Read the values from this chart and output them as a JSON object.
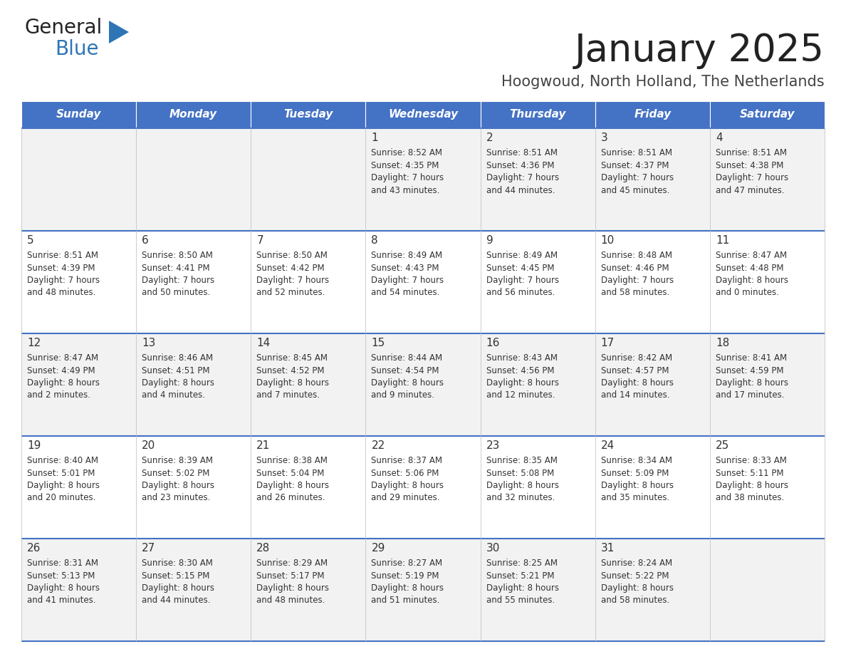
{
  "title": "January 2025",
  "subtitle": "Hoogwoud, North Holland, The Netherlands",
  "days_of_week": [
    "Sunday",
    "Monday",
    "Tuesday",
    "Wednesday",
    "Thursday",
    "Friday",
    "Saturday"
  ],
  "header_bg": "#4472C4",
  "header_text": "#FFFFFF",
  "row_bg_light": "#F2F2F2",
  "row_bg_white": "#FFFFFF",
  "cell_text": "#333333",
  "border_color": "#4472C4",
  "title_color": "#222222",
  "subtitle_color": "#444444",
  "logo_black": "#222222",
  "logo_blue": "#2E75B6",
  "calendar": [
    [
      null,
      null,
      null,
      {
        "day": 1,
        "sunrise": "8:52 AM",
        "sunset": "4:35 PM",
        "daylight": "7 hours and 43 minutes"
      },
      {
        "day": 2,
        "sunrise": "8:51 AM",
        "sunset": "4:36 PM",
        "daylight": "7 hours and 44 minutes"
      },
      {
        "day": 3,
        "sunrise": "8:51 AM",
        "sunset": "4:37 PM",
        "daylight": "7 hours and 45 minutes"
      },
      {
        "day": 4,
        "sunrise": "8:51 AM",
        "sunset": "4:38 PM",
        "daylight": "7 hours and 47 minutes"
      }
    ],
    [
      {
        "day": 5,
        "sunrise": "8:51 AM",
        "sunset": "4:39 PM",
        "daylight": "7 hours and 48 minutes"
      },
      {
        "day": 6,
        "sunrise": "8:50 AM",
        "sunset": "4:41 PM",
        "daylight": "7 hours and 50 minutes"
      },
      {
        "day": 7,
        "sunrise": "8:50 AM",
        "sunset": "4:42 PM",
        "daylight": "7 hours and 52 minutes"
      },
      {
        "day": 8,
        "sunrise": "8:49 AM",
        "sunset": "4:43 PM",
        "daylight": "7 hours and 54 minutes"
      },
      {
        "day": 9,
        "sunrise": "8:49 AM",
        "sunset": "4:45 PM",
        "daylight": "7 hours and 56 minutes"
      },
      {
        "day": 10,
        "sunrise": "8:48 AM",
        "sunset": "4:46 PM",
        "daylight": "7 hours and 58 minutes"
      },
      {
        "day": 11,
        "sunrise": "8:47 AM",
        "sunset": "4:48 PM",
        "daylight": "8 hours and 0 minutes"
      }
    ],
    [
      {
        "day": 12,
        "sunrise": "8:47 AM",
        "sunset": "4:49 PM",
        "daylight": "8 hours and 2 minutes"
      },
      {
        "day": 13,
        "sunrise": "8:46 AM",
        "sunset": "4:51 PM",
        "daylight": "8 hours and 4 minutes"
      },
      {
        "day": 14,
        "sunrise": "8:45 AM",
        "sunset": "4:52 PM",
        "daylight": "8 hours and 7 minutes"
      },
      {
        "day": 15,
        "sunrise": "8:44 AM",
        "sunset": "4:54 PM",
        "daylight": "8 hours and 9 minutes"
      },
      {
        "day": 16,
        "sunrise": "8:43 AM",
        "sunset": "4:56 PM",
        "daylight": "8 hours and 12 minutes"
      },
      {
        "day": 17,
        "sunrise": "8:42 AM",
        "sunset": "4:57 PM",
        "daylight": "8 hours and 14 minutes"
      },
      {
        "day": 18,
        "sunrise": "8:41 AM",
        "sunset": "4:59 PM",
        "daylight": "8 hours and 17 minutes"
      }
    ],
    [
      {
        "day": 19,
        "sunrise": "8:40 AM",
        "sunset": "5:01 PM",
        "daylight": "8 hours and 20 minutes"
      },
      {
        "day": 20,
        "sunrise": "8:39 AM",
        "sunset": "5:02 PM",
        "daylight": "8 hours and 23 minutes"
      },
      {
        "day": 21,
        "sunrise": "8:38 AM",
        "sunset": "5:04 PM",
        "daylight": "8 hours and 26 minutes"
      },
      {
        "day": 22,
        "sunrise": "8:37 AM",
        "sunset": "5:06 PM",
        "daylight": "8 hours and 29 minutes"
      },
      {
        "day": 23,
        "sunrise": "8:35 AM",
        "sunset": "5:08 PM",
        "daylight": "8 hours and 32 minutes"
      },
      {
        "day": 24,
        "sunrise": "8:34 AM",
        "sunset": "5:09 PM",
        "daylight": "8 hours and 35 minutes"
      },
      {
        "day": 25,
        "sunrise": "8:33 AM",
        "sunset": "5:11 PM",
        "daylight": "8 hours and 38 minutes"
      }
    ],
    [
      {
        "day": 26,
        "sunrise": "8:31 AM",
        "sunset": "5:13 PM",
        "daylight": "8 hours and 41 minutes"
      },
      {
        "day": 27,
        "sunrise": "8:30 AM",
        "sunset": "5:15 PM",
        "daylight": "8 hours and 44 minutes"
      },
      {
        "day": 28,
        "sunrise": "8:29 AM",
        "sunset": "5:17 PM",
        "daylight": "8 hours and 48 minutes"
      },
      {
        "day": 29,
        "sunrise": "8:27 AM",
        "sunset": "5:19 PM",
        "daylight": "8 hours and 51 minutes"
      },
      {
        "day": 30,
        "sunrise": "8:25 AM",
        "sunset": "5:21 PM",
        "daylight": "8 hours and 55 minutes"
      },
      {
        "day": 31,
        "sunrise": "8:24 AM",
        "sunset": "5:22 PM",
        "daylight": "8 hours and 58 minutes"
      },
      null
    ]
  ]
}
